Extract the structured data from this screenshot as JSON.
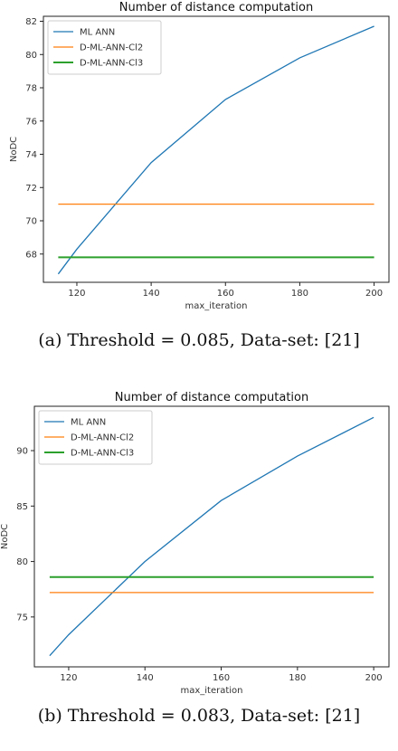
{
  "chart_data": [
    {
      "type": "line",
      "title": "Number of distance computation",
      "xlabel": "max_iteration",
      "ylabel": "NoDC",
      "xlim": [
        111,
        204
      ],
      "ylim": [
        66.3,
        82.3
      ],
      "xticks": [
        120,
        140,
        160,
        180,
        200
      ],
      "yticks": [
        68,
        70,
        72,
        74,
        76,
        78,
        80,
        82
      ],
      "legend": "top-left",
      "grid": false,
      "series": [
        {
          "name": "ML ANN",
          "color": "#1f77b4",
          "x": [
            115,
            120,
            140,
            160,
            180,
            200
          ],
          "y": [
            66.8,
            68.3,
            73.5,
            77.3,
            79.8,
            81.7
          ]
        },
        {
          "name": "D-ML-ANN-Cl2",
          "color": "#ff7f0e",
          "x": [
            115,
            200
          ],
          "y": [
            71.0,
            71.0
          ]
        },
        {
          "name": "D-ML-ANN-Cl3",
          "color": "#2ca02c",
          "x": [
            115,
            200
          ],
          "y": [
            67.8,
            67.8
          ]
        }
      ],
      "caption": "(a) Threshold = 0.085, Data-set: [21]"
    },
    {
      "type": "line",
      "title": "Number of distance computation",
      "xlabel": "max_iteration",
      "ylabel": "NoDC",
      "xlim": [
        111,
        204
      ],
      "ylim": [
        70.5,
        94.0
      ],
      "xticks": [
        120,
        140,
        160,
        180,
        200
      ],
      "yticks": [
        75,
        80,
        85,
        90
      ],
      "legend": "top-left",
      "grid": false,
      "series": [
        {
          "name": "ML ANN",
          "color": "#1f77b4",
          "x": [
            115,
            120,
            140,
            160,
            180,
            200
          ],
          "y": [
            71.5,
            73.4,
            80.0,
            85.5,
            89.5,
            93.0
          ]
        },
        {
          "name": "D-ML-ANN-Cl2",
          "color": "#ff7f0e",
          "x": [
            115,
            200
          ],
          "y": [
            77.2,
            77.2
          ]
        },
        {
          "name": "D-ML-ANN-Cl3",
          "color": "#2ca02c",
          "x": [
            115,
            200
          ],
          "y": [
            78.6,
            78.6
          ]
        }
      ],
      "caption": "(b) Threshold = 0.083, Data-set: [21]"
    }
  ]
}
